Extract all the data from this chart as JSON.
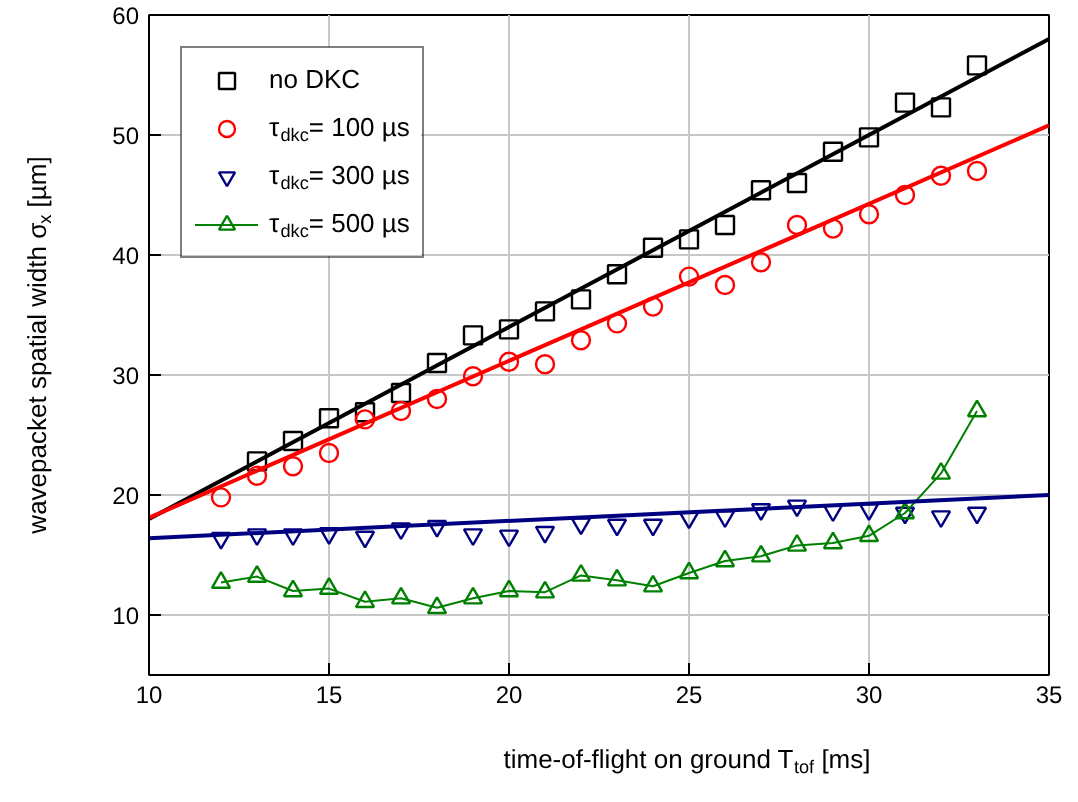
{
  "chart_data": {
    "type": "scatter",
    "xlabel": "time-of-flight on ground T$_{tof}$ [ms]",
    "ylabel": "wavepacket spatial width σ$_{x}$ [µm]",
    "xlim": [
      10,
      35
    ],
    "xticks": [
      10,
      15,
      20,
      25,
      30,
      35
    ],
    "ylim": [
      5,
      60
    ],
    "yticks": [
      10,
      20,
      30,
      40,
      50,
      60
    ],
    "grid": true,
    "legend": "top left",
    "series": [
      {
        "name": "no DKC",
        "marker": "square",
        "color": "#000000",
        "x": [
          13,
          14,
          15,
          16,
          17,
          18,
          19,
          20,
          21,
          22,
          23,
          24,
          25,
          26,
          27,
          28,
          29,
          30,
          31,
          32,
          33
        ],
        "values": [
          22.8,
          24.5,
          26.4,
          26.9,
          28.5,
          31.0,
          33.3,
          33.8,
          35.3,
          36.3,
          38.4,
          40.6,
          41.3,
          42.5,
          45.4,
          46.0,
          48.6,
          49.8,
          52.7,
          52.3,
          55.8
        ]
      },
      {
        "name": "τ$_{dkc}$= 100 µs",
        "marker": "circle",
        "color": "#ff0000",
        "x": [
          12,
          13,
          14,
          15,
          16,
          17,
          18,
          19,
          20,
          21,
          22,
          23,
          24,
          25,
          26,
          27,
          28,
          29,
          30,
          31,
          32,
          33
        ],
        "values": [
          19.8,
          21.6,
          22.4,
          23.5,
          26.3,
          27.0,
          28.0,
          29.9,
          31.1,
          30.9,
          32.9,
          34.3,
          35.7,
          38.2,
          37.5,
          39.4,
          42.5,
          42.2,
          43.4,
          45.0,
          46.6,
          47.0
        ]
      },
      {
        "name": "τ$_{dkc}$= 300 µs",
        "marker": "triangle_down",
        "color": "#000080",
        "x": [
          12,
          13,
          14,
          15,
          16,
          17,
          18,
          19,
          20,
          21,
          22,
          23,
          24,
          25,
          26,
          27,
          28,
          29,
          30,
          31,
          32,
          33
        ],
        "values": [
          16.4,
          16.7,
          16.7,
          16.8,
          16.5,
          17.2,
          17.4,
          16.7,
          16.6,
          16.9,
          17.6,
          17.5,
          17.5,
          18.1,
          18.2,
          18.8,
          19.1,
          18.7,
          18.8,
          18.5,
          18.2,
          18.5
        ]
      },
      {
        "name": "τ$_{dkc}$= 500 µs",
        "type": "line",
        "marker": "triangle",
        "color": "#008000",
        "x": [
          12,
          13,
          14,
          15,
          16,
          17,
          18,
          19,
          20,
          21,
          22,
          23,
          24,
          25,
          26,
          27,
          28,
          29,
          30,
          31,
          32,
          33
        ],
        "values": [
          12.7,
          13.2,
          12.0,
          12.2,
          11.1,
          11.4,
          10.6,
          11.4,
          12.0,
          11.9,
          13.3,
          12.9,
          12.4,
          13.5,
          14.5,
          14.9,
          15.8,
          16.0,
          16.6,
          18.5,
          21.8,
          27.0
        ]
      },
      {
        "type": "line",
        "marker": "none",
        "color": "#000000",
        "x": [
          10,
          35
        ],
        "values": [
          18.0,
          58.0
        ]
      },
      {
        "type": "line",
        "marker": "none",
        "color": "#ff0000",
        "x": [
          10,
          35
        ],
        "values": [
          18.1,
          50.8
        ]
      },
      {
        "type": "line",
        "marker": "none",
        "color": "#000080",
        "x": [
          10,
          35
        ],
        "values": [
          16.4,
          20.0
        ]
      }
    ]
  }
}
